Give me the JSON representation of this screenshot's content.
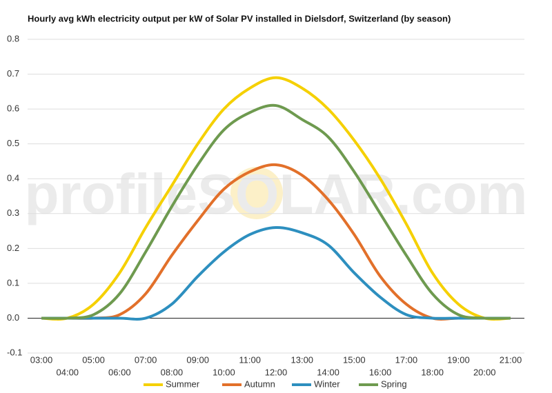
{
  "chart_data": {
    "type": "line",
    "title": "Hourly avg kWh electricity output per kW of Solar PV installed in Dielsdorf, Switzerland (by season)",
    "watermark": "profileSOLAR.com",
    "categories": [
      "03:00",
      "04:00",
      "05:00",
      "06:00",
      "07:00",
      "08:00",
      "09:00",
      "10:00",
      "11:00",
      "12:00",
      "13:00",
      "14:00",
      "15:00",
      "16:00",
      "17:00",
      "18:00",
      "19:00",
      "20:00",
      "21:00"
    ],
    "series": [
      {
        "name": "Summer",
        "color": "#f5d000",
        "values": [
          0,
          0,
          0.04,
          0.13,
          0.26,
          0.38,
          0.5,
          0.6,
          0.66,
          0.69,
          0.66,
          0.6,
          0.51,
          0.4,
          0.27,
          0.13,
          0.04,
          0,
          0
        ]
      },
      {
        "name": "Autumn",
        "color": "#e2702a",
        "values": [
          0,
          0,
          0,
          0.01,
          0.07,
          0.18,
          0.28,
          0.37,
          0.42,
          0.44,
          0.41,
          0.34,
          0.24,
          0.12,
          0.04,
          0,
          0,
          0,
          0
        ]
      },
      {
        "name": "Winter",
        "color": "#2d8fbf",
        "values": [
          0,
          0,
          0,
          0,
          0,
          0.04,
          0.12,
          0.19,
          0.24,
          0.26,
          0.245,
          0.21,
          0.13,
          0.06,
          0.01,
          0,
          0,
          0,
          0
        ]
      },
      {
        "name": "Spring",
        "color": "#6e9a4f",
        "values": [
          0,
          0,
          0.01,
          0.07,
          0.19,
          0.32,
          0.44,
          0.54,
          0.59,
          0.61,
          0.57,
          0.52,
          0.42,
          0.3,
          0.18,
          0.07,
          0.01,
          0,
          0
        ]
      }
    ],
    "ylim": [
      -0.1,
      0.8
    ],
    "yticks": [
      -0.1,
      {
        "value": 0,
        "label": "0.0"
      },
      0.1,
      0.2,
      0.3,
      0.4,
      0.5,
      0.6,
      0.7,
      0.8
    ],
    "grid": true
  }
}
